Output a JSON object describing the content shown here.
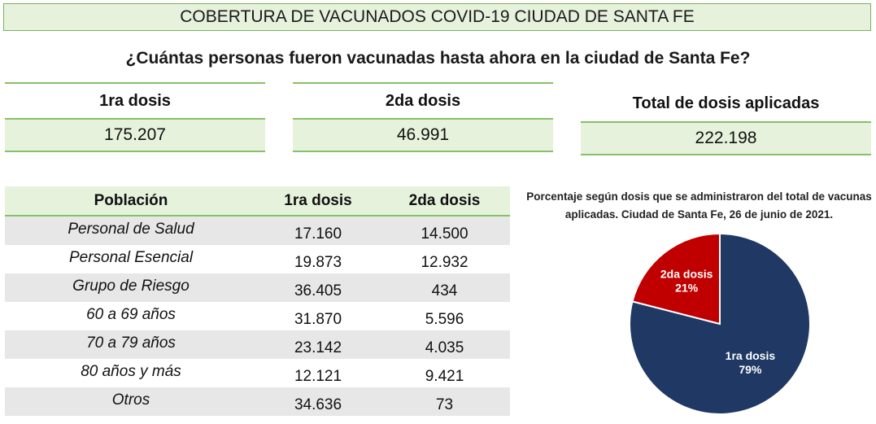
{
  "banner": "COBERTURA DE VACUNADOS COVID-19 CIUDAD DE SANTA FE",
  "question": "¿Cuántas personas fueron vacunadas hasta ahora en la ciudad de Santa Fe?",
  "stats": [
    {
      "label": "1ra dosis",
      "value": "175.207"
    },
    {
      "label": "2da dosis",
      "value": "46.991"
    },
    {
      "label": "Total de dosis aplicadas",
      "value": "222.198"
    }
  ],
  "table": {
    "headers": [
      "Población",
      "1ra dosis",
      "2da dosis"
    ],
    "rows": [
      [
        "Personal de Salud",
        "17.160",
        "14.500"
      ],
      [
        "Personal Esencial",
        "19.873",
        "12.932"
      ],
      [
        "Grupo de Riesgo",
        "36.405",
        "434"
      ],
      [
        "60 a 69 años",
        "31.870",
        "5.596"
      ],
      [
        "70 a 79 años",
        "23.142",
        "4.035"
      ],
      [
        "80 años y más",
        "12.121",
        "9.421"
      ],
      [
        "Otros",
        "34.636",
        "73"
      ]
    ]
  },
  "chart_data": {
    "type": "pie",
    "title": "Porcentaje según dosis que se administraron del total de vacunas aplicadas. Ciudad de Santa Fe, 26 de junio de 2021.",
    "slices": [
      {
        "label": "1ra dosis",
        "value": 79,
        "value_label": "79%",
        "color": "#1f3864"
      },
      {
        "label": "2da dosis",
        "value": 21,
        "value_label": "21%",
        "color": "#c00000"
      }
    ]
  }
}
